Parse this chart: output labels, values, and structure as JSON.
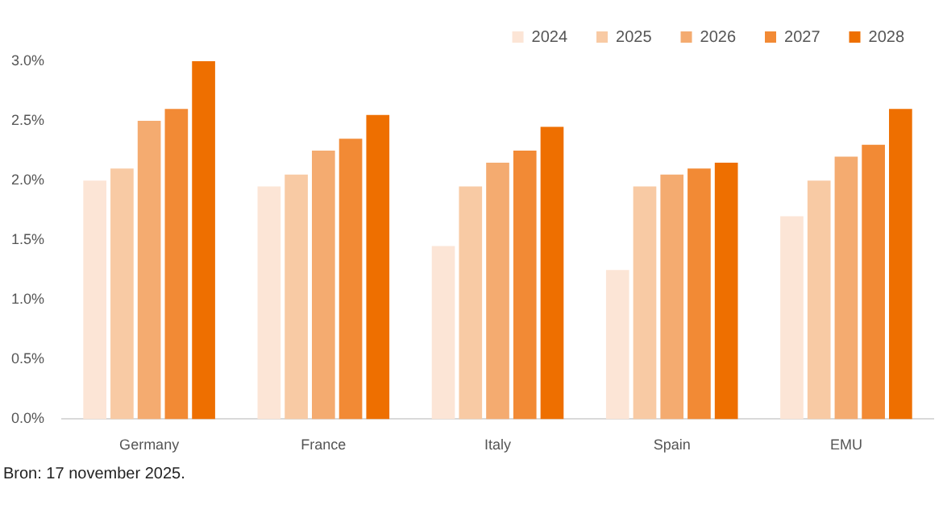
{
  "chart_data": {
    "type": "bar",
    "categories": [
      "Germany",
      "France",
      "Italy",
      "Spain",
      "EMU"
    ],
    "series": [
      {
        "name": "2024",
        "color": "#fce5d6",
        "values": [
          2.0,
          1.95,
          1.45,
          1.25,
          1.7
        ]
      },
      {
        "name": "2025",
        "color": "#f8caa4",
        "values": [
          2.1,
          2.05,
          1.95,
          1.95,
          2.0
        ]
      },
      {
        "name": "2026",
        "color": "#f4ab70",
        "values": [
          2.5,
          2.25,
          2.15,
          2.05,
          2.2
        ]
      },
      {
        "name": "2027",
        "color": "#f28a35",
        "values": [
          2.6,
          2.35,
          2.25,
          2.1,
          2.3
        ]
      },
      {
        "name": "2028",
        "color": "#ee6f00",
        "values": [
          3.0,
          2.55,
          2.45,
          2.15,
          2.6
        ]
      }
    ],
    "ylim": [
      0,
      3
    ],
    "yticks": [
      {
        "value": 0,
        "label": "0.0%"
      },
      {
        "value": 0.5,
        "label": "0.5%"
      },
      {
        "value": 1,
        "label": "1.0%"
      },
      {
        "value": 1.5,
        "label": "1.5%"
      },
      {
        "value": 2,
        "label": "2.0%"
      },
      {
        "value": 2.5,
        "label": "2.5%"
      },
      {
        "value": 3,
        "label": "3.0%"
      }
    ],
    "grid": false,
    "legend": "top right",
    "annotations": [
      "Bron: 17 november 2025."
    ]
  }
}
